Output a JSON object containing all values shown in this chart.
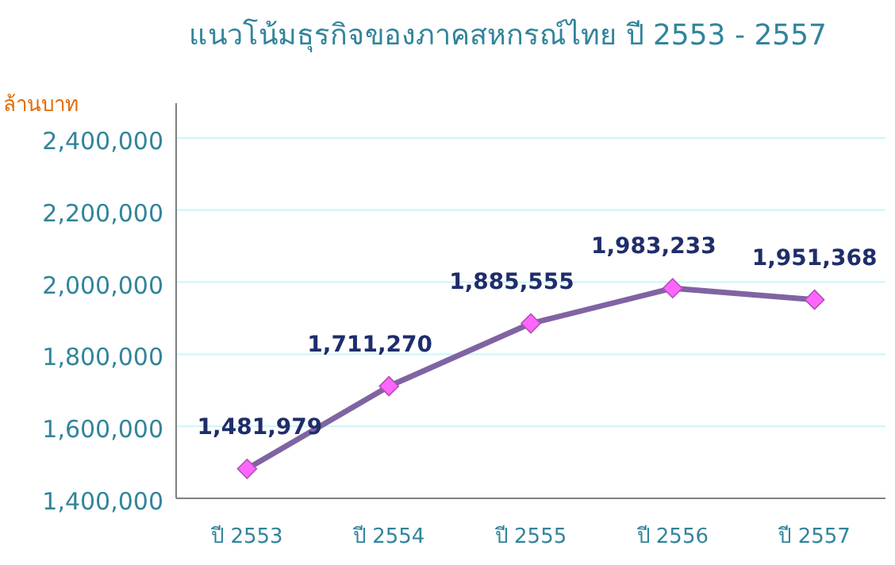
{
  "chart_data": {
    "type": "line",
    "title": "แนวโน้มธุรกิจของภาคสหกรณ์ไทย ปี 2553 - 2557",
    "ylabel": "ล้านบาท",
    "categories": [
      "ปี 2553",
      "ปี 2554",
      "ปี 2555",
      "ปี 2556",
      "ปี 2557"
    ],
    "series": [
      {
        "color": "#8064a2",
        "values": [
          1481979,
          1711270,
          1885555,
          1983233,
          1951368
        ],
        "value_labels": [
          "1,481,979",
          "1,711,270",
          "1,885,555",
          "1,983,233",
          "1,951,368"
        ]
      }
    ],
    "ylim": [
      1400000,
      2400000
    ],
    "yticks": [
      {
        "value": 1400000,
        "label": "1,400,000"
      },
      {
        "value": 1600000,
        "label": "1,600,000"
      },
      {
        "value": 1800000,
        "label": "1,800,000"
      },
      {
        "value": 2000000,
        "label": "2,000,000"
      },
      {
        "value": 2200000,
        "label": "2,200,000"
      },
      {
        "value": 2400000,
        "label": "2,400,000"
      }
    ],
    "grid": "y",
    "marker": "diamond",
    "line_style": "solid"
  }
}
